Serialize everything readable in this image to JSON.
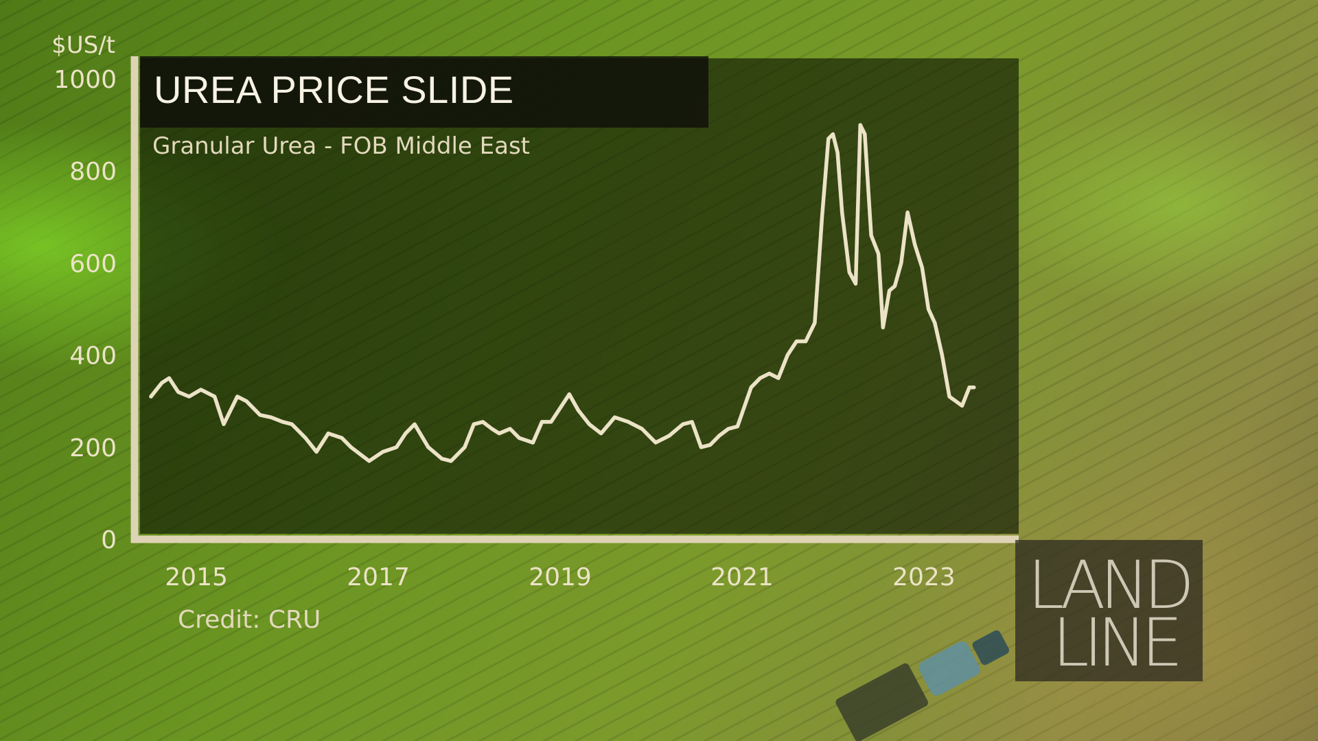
{
  "chart_data": {
    "type": "line",
    "title": "UREA PRICE SLIDE",
    "subtitle": "Granular Urea - FOB Middle East",
    "ylabel": "$US/t",
    "xlabel": "",
    "ylim": [
      0,
      1000
    ],
    "xlim": [
      2014.35,
      2024.05
    ],
    "y_ticks": [
      "0",
      "200",
      "400",
      "600",
      "800",
      "1000"
    ],
    "x_ticks": [
      "2015",
      "2017",
      "2019",
      "2021",
      "2023"
    ],
    "grid": false,
    "legend": "none",
    "credit": "Credit: CRU",
    "line_color": "#ece3c7",
    "series": [
      {
        "x": [
          2014.5,
          2014.62,
          2014.7,
          2014.8,
          2014.92,
          2015.05,
          2015.2,
          2015.3,
          2015.45,
          2015.55,
          2015.7,
          2015.82,
          2015.95,
          2016.05,
          2016.2,
          2016.32,
          2016.45,
          2016.6,
          2016.7,
          2016.8,
          2016.9,
          2017.05,
          2017.2,
          2017.3,
          2017.4,
          2017.55,
          2017.7,
          2017.8,
          2017.95,
          2018.05,
          2018.15,
          2018.25,
          2018.33,
          2018.45,
          2018.55,
          2018.7,
          2018.8,
          2018.9,
          2019.0,
          2019.1,
          2019.2,
          2019.32,
          2019.45,
          2019.6,
          2019.75,
          2019.9,
          2020.05,
          2020.2,
          2020.35,
          2020.45,
          2020.55,
          2020.65,
          2020.75,
          2020.85,
          2020.95,
          2021.1,
          2021.2,
          2021.3,
          2021.4,
          2021.5,
          2021.6,
          2021.7,
          2021.8,
          2021.88,
          2021.95,
          2022.0,
          2022.05,
          2022.1,
          2022.18,
          2022.25,
          2022.3,
          2022.35,
          2022.42,
          2022.5,
          2022.55,
          2022.62,
          2022.68,
          2022.75,
          2022.82,
          2022.9,
          2022.98,
          2023.05,
          2023.12,
          2023.2,
          2023.28,
          2023.35,
          2023.42,
          2023.5,
          2023.55
        ],
        "values": [
          310,
          340,
          350,
          320,
          310,
          325,
          310,
          250,
          310,
          300,
          270,
          265,
          255,
          250,
          220,
          190,
          230,
          220,
          200,
          185,
          170,
          190,
          200,
          230,
          250,
          200,
          175,
          170,
          200,
          250,
          255,
          240,
          230,
          240,
          220,
          210,
          255,
          255,
          285,
          315,
          280,
          250,
          230,
          265,
          255,
          240,
          210,
          225,
          250,
          255,
          200,
          205,
          225,
          240,
          245,
          330,
          350,
          360,
          350,
          400,
          430,
          430,
          470,
          700,
          870,
          880,
          840,
          710,
          580,
          555,
          900,
          880,
          660,
          620,
          460,
          540,
          550,
          600,
          710,
          640,
          590,
          500,
          470,
          400,
          310,
          300,
          290,
          330,
          330
        ]
      }
    ]
  },
  "logo": {
    "line1": "LAND",
    "line2": "LINE"
  }
}
